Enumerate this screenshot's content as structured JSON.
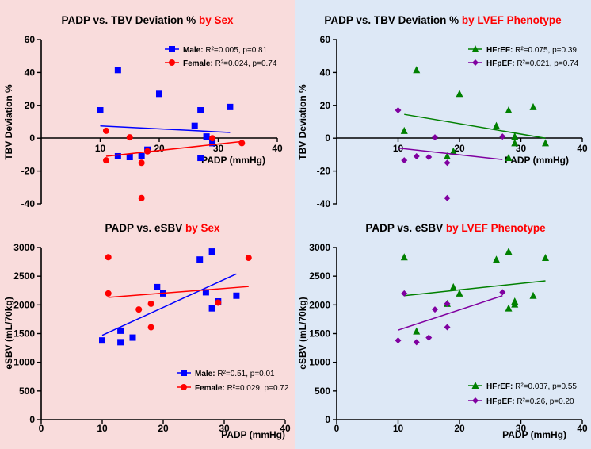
{
  "colors": {
    "bg_left": "#f9dcdc",
    "bg_right": "#dde8f6",
    "highlight": "#ff0000",
    "male": "#0000ff",
    "female": "#ff0000",
    "hfref": "#008000",
    "hfpef": "#8000a0"
  },
  "chart_data": [
    {
      "id": "tl",
      "type": "scatter",
      "title": "PADP vs. TBV Deviation %",
      "title_highlight": "by  Sex",
      "xlabel": "PADP (mmHg)",
      "ylabel": "TBV Deviation %",
      "xlim": [
        0,
        40
      ],
      "ylim": [
        -40,
        60
      ],
      "xticks": [
        "10",
        "20",
        "30",
        "40"
      ],
      "yticks": [
        "-40",
        "-20",
        "0",
        "20",
        "40",
        "60"
      ],
      "legend_position": "top-right",
      "series": [
        {
          "name": "Male",
          "marker": "square",
          "color": "#0000ff",
          "stat": "R²=0.005, p=0.81",
          "points": [
            [
              10,
              17
            ],
            [
              13,
              41.5
            ],
            [
              13,
              -11
            ],
            [
              15,
              -11.5
            ],
            [
              17,
              -11
            ],
            [
              18,
              -7
            ],
            [
              20,
              27
            ],
            [
              26,
              7.5
            ],
            [
              27,
              17
            ],
            [
              27,
              -12
            ],
            [
              28,
              1
            ],
            [
              29,
              -3
            ],
            [
              32,
              19
            ]
          ],
          "fit": [
            [
              10,
              7.5
            ],
            [
              32,
              3.5
            ]
          ]
        },
        {
          "name": "Female",
          "marker": "circle",
          "color": "#ff0000",
          "stat": "R²=0.024, p=0.74",
          "points": [
            [
              11,
              4.5
            ],
            [
              11,
              -13.5
            ],
            [
              15,
              0.5
            ],
            [
              17,
              -15
            ],
            [
              17,
              -36.5
            ],
            [
              18,
              -8
            ],
            [
              29,
              0
            ],
            [
              34,
              -3
            ]
          ],
          "fit": [
            [
              11,
              -11
            ],
            [
              34,
              -2
            ]
          ]
        }
      ]
    },
    {
      "id": "tr",
      "type": "scatter",
      "title": "PADP vs. TBV Deviation %",
      "title_highlight": "by  LVEF Phenotype",
      "xlabel": "PADP (mmHg)",
      "ylabel": "TBV Deviation %",
      "xlim": [
        0,
        40
      ],
      "ylim": [
        -40,
        60
      ],
      "xticks": [
        "10",
        "20",
        "30",
        "40"
      ],
      "yticks": [
        "-40",
        "-20",
        "0",
        "20",
        "40",
        "60"
      ],
      "legend_position": "top-right",
      "series": [
        {
          "name": "HFrEF",
          "marker": "triangle",
          "color": "#008000",
          "stat": "R²=0.075, p=0.39",
          "points": [
            [
              11,
              4.5
            ],
            [
              13,
              41.5
            ],
            [
              18,
              -11
            ],
            [
              19,
              -8
            ],
            [
              20,
              27
            ],
            [
              26,
              7.5
            ],
            [
              28,
              17
            ],
            [
              28,
              -12
            ],
            [
              29,
              1
            ],
            [
              29,
              -3
            ],
            [
              32,
              19
            ],
            [
              34,
              -3
            ]
          ],
          "fit": [
            [
              11,
              14.5
            ],
            [
              34,
              0
            ]
          ]
        },
        {
          "name": "HFpEF",
          "marker": "diamond",
          "color": "#8000a0",
          "stat": "R²=0.021, p=0.74",
          "points": [
            [
              10,
              17
            ],
            [
              11,
              -13.5
            ],
            [
              13,
              -11
            ],
            [
              15,
              -11.5
            ],
            [
              16,
              0.5
            ],
            [
              18,
              -15
            ],
            [
              18,
              -36.5
            ],
            [
              27,
              1
            ]
          ],
          "fit": [
            [
              10,
              -6
            ],
            [
              27,
              -13
            ]
          ]
        }
      ]
    },
    {
      "id": "bl",
      "type": "scatter",
      "title": "PADP vs. eSBV",
      "title_highlight": "by  Sex",
      "xlabel": "PADP (mmHg)",
      "ylabel": "eSBV (mL/70kg)",
      "xlim": [
        0,
        40
      ],
      "ylim": [
        0,
        3000
      ],
      "xticks": [
        "0",
        "10",
        "20",
        "30",
        "40"
      ],
      "yticks": [
        "0",
        "500",
        "1000",
        "1500",
        "2000",
        "2500",
        "3000"
      ],
      "legend_position": "bottom-right",
      "series": [
        {
          "name": "Male",
          "marker": "square",
          "color": "#0000ff",
          "stat": "R²=0.51, p=0.01",
          "points": [
            [
              10,
              1380
            ],
            [
              13,
              1550
            ],
            [
              13,
              1350
            ],
            [
              15,
              1430
            ],
            [
              19,
              2310
            ],
            [
              20,
              2200
            ],
            [
              26,
              2790
            ],
            [
              27,
              2220
            ],
            [
              28,
              2930
            ],
            [
              28,
              1940
            ],
            [
              29,
              2060
            ],
            [
              32,
              2160
            ]
          ],
          "fit": [
            [
              10,
              1470
            ],
            [
              32,
              2540
            ]
          ]
        },
        {
          "name": "Female",
          "marker": "circle",
          "color": "#ff0000",
          "stat": "R²=0.029, p=0.72",
          "points": [
            [
              11,
              2830
            ],
            [
              11,
              2200
            ],
            [
              16,
              1920
            ],
            [
              18,
              2020
            ],
            [
              18,
              1610
            ],
            [
              29,
              2040
            ],
            [
              34,
              2820
            ]
          ],
          "fit": [
            [
              11,
              2130
            ],
            [
              34,
              2320
            ]
          ]
        }
      ]
    },
    {
      "id": "br",
      "type": "scatter",
      "title": "PADP vs. eSBV",
      "title_highlight": "by  LVEF Phenotype",
      "xlabel": "PADP (mmHg)",
      "ylabel": "eSBV (mL/70kg)",
      "xlim": [
        0,
        40
      ],
      "ylim": [
        0,
        3000
      ],
      "xticks": [
        "0",
        "10",
        "20",
        "30",
        "40"
      ],
      "yticks": [
        "0",
        "500",
        "1000",
        "1500",
        "2000",
        "2500",
        "3000"
      ],
      "legend_position": "bottom-right",
      "series": [
        {
          "name": "HFrEF",
          "marker": "triangle",
          "color": "#008000",
          "stat": "R²=0.037, p=0.55",
          "points": [
            [
              11,
              2830
            ],
            [
              13,
              1540
            ],
            [
              18,
              2020
            ],
            [
              19,
              2310
            ],
            [
              20,
              2200
            ],
            [
              26,
              2790
            ],
            [
              28,
              2930
            ],
            [
              28,
              1940
            ],
            [
              29,
              2060
            ],
            [
              29,
              2010
            ],
            [
              32,
              2160
            ],
            [
              34,
              2820
            ]
          ],
          "fit": [
            [
              11,
              2160
            ],
            [
              34,
              2420
            ]
          ]
        },
        {
          "name": "HFpEF",
          "marker": "diamond",
          "color": "#8000a0",
          "stat": "R²=0.26, p=0.20",
          "points": [
            [
              10,
              1380
            ],
            [
              11,
              2200
            ],
            [
              13,
              1350
            ],
            [
              15,
              1430
            ],
            [
              16,
              1920
            ],
            [
              18,
              2020
            ],
            [
              18,
              1610
            ],
            [
              27,
              2220
            ]
          ],
          "fit": [
            [
              10,
              1560
            ],
            [
              27,
              2160
            ]
          ]
        }
      ]
    }
  ]
}
